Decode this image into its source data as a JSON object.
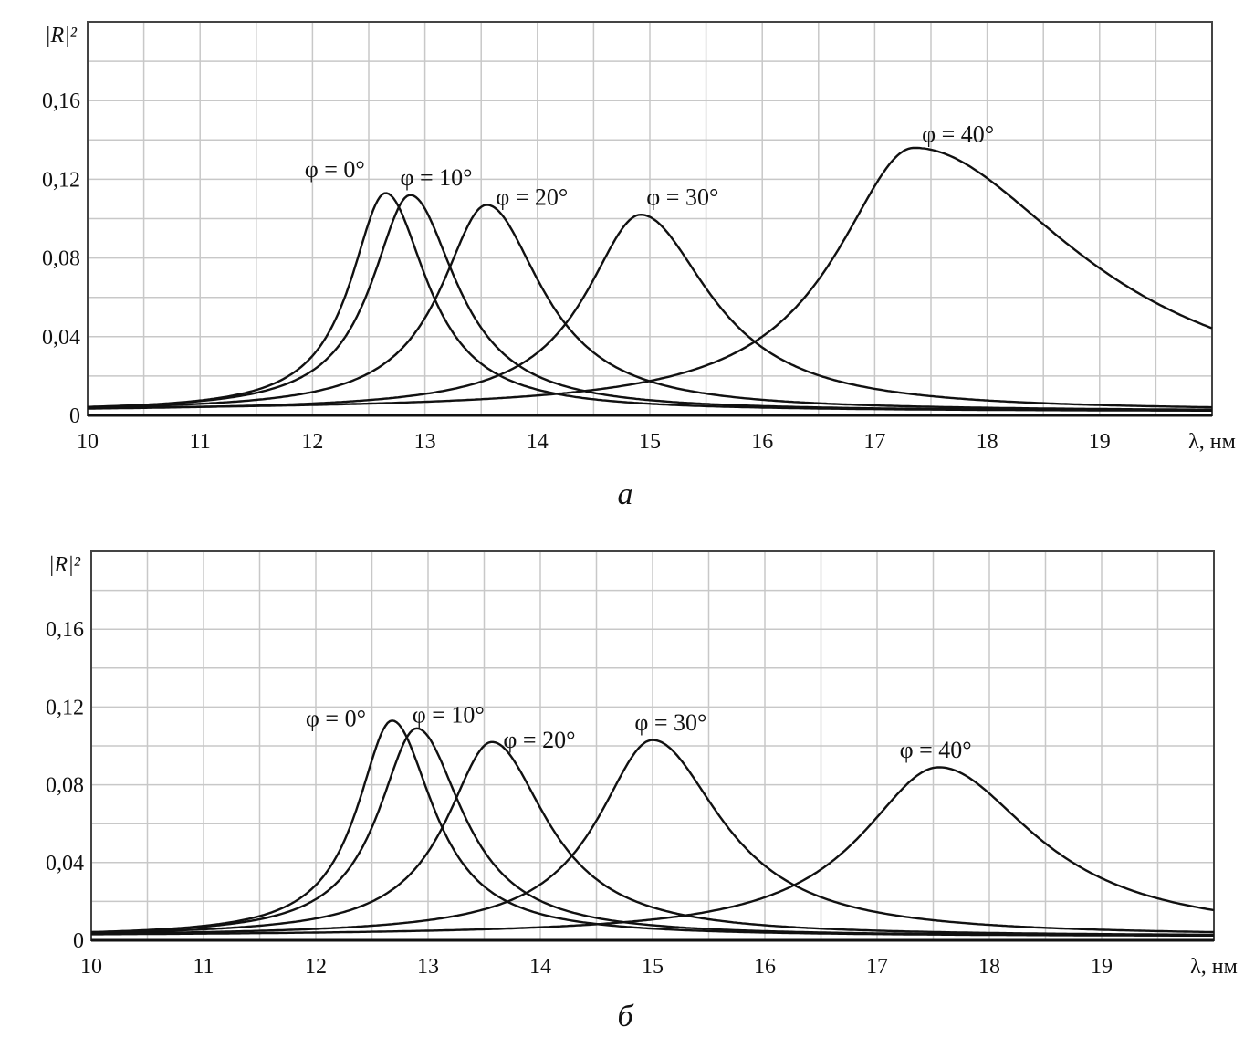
{
  "chart_data": [
    {
      "type": "line",
      "panel_label": "а",
      "ylabel": "|R|²",
      "xlabel": "λ, нм",
      "xlim": [
        10,
        20
      ],
      "ylim": [
        0,
        0.2
      ],
      "x_ticks": [
        "10",
        "11",
        "12",
        "13",
        "14",
        "15",
        "16",
        "17",
        "18",
        "19"
      ],
      "y_ticks": [
        {
          "v": 0,
          "label": "0"
        },
        {
          "v": 0.04,
          "label": "0,04"
        },
        {
          "v": 0.08,
          "label": "0,08"
        },
        {
          "v": 0.12,
          "label": "0,12"
        },
        {
          "v": 0.16,
          "label": "0,16"
        }
      ],
      "grid": true,
      "series": [
        {
          "name": "φ = 0°",
          "peak_x": 12.65,
          "peak_y": 0.111,
          "hw_left": 0.38,
          "hw_right": 0.45,
          "label_at": [
            11.93,
            0.121
          ]
        },
        {
          "name": "φ = 10°",
          "peak_x": 12.87,
          "peak_y": 0.11,
          "hw_left": 0.42,
          "hw_right": 0.5,
          "label_at": [
            12.78,
            0.117
          ]
        },
        {
          "name": "φ = 20°",
          "peak_x": 13.55,
          "peak_y": 0.105,
          "hw_left": 0.5,
          "hw_right": 0.6,
          "label_at": [
            13.63,
            0.107
          ]
        },
        {
          "name": "φ = 30°",
          "peak_x": 14.92,
          "peak_y": 0.1,
          "hw_left": 0.6,
          "hw_right": 0.75,
          "label_at": [
            14.97,
            0.107
          ]
        },
        {
          "name": "φ = 40°",
          "peak_x": 17.35,
          "peak_y": 0.134,
          "hw_left": 0.85,
          "hw_right": 1.8,
          "label_at": [
            17.42,
            0.139
          ]
        }
      ]
    },
    {
      "type": "line",
      "panel_label": "б",
      "ylabel": "|R|²",
      "xlabel": "λ, нм",
      "xlim": [
        10,
        20
      ],
      "ylim": [
        0,
        0.2
      ],
      "x_ticks": [
        "10",
        "11",
        "12",
        "13",
        "14",
        "15",
        "16",
        "17",
        "18",
        "19"
      ],
      "y_ticks": [
        {
          "v": 0,
          "label": "0"
        },
        {
          "v": 0.04,
          "label": "0,04"
        },
        {
          "v": 0.08,
          "label": "0,08"
        },
        {
          "v": 0.12,
          "label": "0,12"
        },
        {
          "v": 0.16,
          "label": "0,16"
        }
      ],
      "grid": true,
      "series": [
        {
          "name": "φ = 0°",
          "peak_x": 12.68,
          "peak_y": 0.111,
          "hw_left": 0.38,
          "hw_right": 0.45,
          "label_at": [
            11.91,
            0.11
          ]
        },
        {
          "name": "φ = 10°",
          "peak_x": 12.9,
          "peak_y": 0.107,
          "hw_left": 0.42,
          "hw_right": 0.5,
          "label_at": [
            12.86,
            0.112
          ]
        },
        {
          "name": "φ = 20°",
          "peak_x": 13.57,
          "peak_y": 0.1,
          "hw_left": 0.5,
          "hw_right": 0.6,
          "label_at": [
            13.67,
            0.099
          ]
        },
        {
          "name": "φ = 30°",
          "peak_x": 15.0,
          "peak_y": 0.101,
          "hw_left": 0.6,
          "hw_right": 0.75,
          "label_at": [
            14.84,
            0.108
          ]
        },
        {
          "name": "φ = 40°",
          "peak_x": 17.55,
          "peak_y": 0.087,
          "hw_left": 0.85,
          "hw_right": 1.05,
          "label_at": [
            17.2,
            0.094
          ]
        }
      ]
    }
  ]
}
